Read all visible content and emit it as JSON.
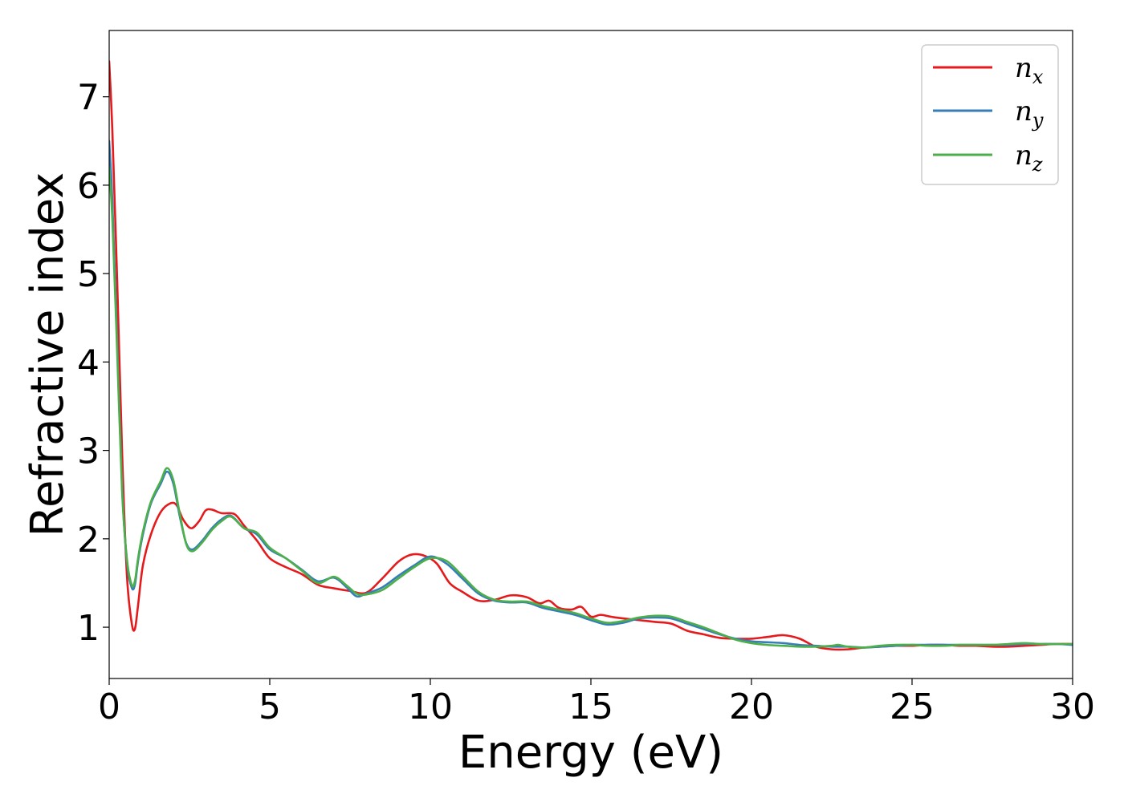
{
  "chart_data": {
    "type": "line",
    "title": "",
    "xlabel": "Energy (eV)",
    "ylabel": "Refractive index",
    "xlim": [
      0,
      30
    ],
    "ylim": [
      0.42,
      7.75
    ],
    "xticks": [
      0,
      5,
      10,
      15,
      20,
      25,
      30
    ],
    "yticks": [
      1,
      2,
      3,
      4,
      5,
      6,
      7
    ],
    "grid": false,
    "legend_position": "top-right",
    "series": [
      {
        "name": "n",
        "subscript": "x",
        "color": "#e41a1c",
        "x": [
          0,
          0.1,
          0.25,
          0.4,
          0.55,
          0.7,
          0.8,
          0.9,
          1.05,
          1.3,
          1.6,
          1.9,
          2.1,
          2.3,
          2.55,
          2.8,
          3.0,
          3.2,
          3.5,
          3.9,
          4.2,
          4.6,
          5.0,
          5.5,
          6.0,
          6.5,
          7.0,
          7.5,
          8.0,
          8.5,
          9.0,
          9.4,
          9.8,
          10.2,
          10.6,
          11.0,
          11.5,
          12.0,
          12.5,
          13.0,
          13.4,
          13.7,
          14.0,
          14.4,
          14.7,
          15.0,
          15.3,
          15.6,
          16.0,
          16.5,
          17.0,
          17.5,
          18.0,
          18.5,
          19.0,
          19.5,
          20.0,
          20.5,
          21.0,
          21.5,
          22.0,
          22.5,
          23.0,
          23.5,
          24.0,
          24.5,
          25.0,
          25.5,
          26.0,
          26.5,
          27.0,
          27.5,
          28.0,
          28.5,
          29.0,
          29.5,
          30.0
        ],
        "y": [
          7.4,
          6.6,
          4.9,
          3.0,
          1.6,
          1.05,
          0.98,
          1.25,
          1.7,
          2.05,
          2.3,
          2.4,
          2.38,
          2.22,
          2.12,
          2.2,
          2.32,
          2.33,
          2.29,
          2.28,
          2.15,
          1.98,
          1.78,
          1.68,
          1.6,
          1.48,
          1.44,
          1.41,
          1.39,
          1.55,
          1.74,
          1.82,
          1.81,
          1.72,
          1.5,
          1.4,
          1.3,
          1.31,
          1.36,
          1.34,
          1.27,
          1.3,
          1.22,
          1.2,
          1.23,
          1.12,
          1.14,
          1.12,
          1.1,
          1.08,
          1.06,
          1.04,
          0.96,
          0.92,
          0.88,
          0.87,
          0.87,
          0.89,
          0.91,
          0.87,
          0.78,
          0.75,
          0.75,
          0.77,
          0.78,
          0.79,
          0.79,
          0.8,
          0.8,
          0.79,
          0.79,
          0.78,
          0.78,
          0.79,
          0.8,
          0.81,
          0.81
        ]
      },
      {
        "name": "n",
        "subscript": "y",
        "color": "#377eb8",
        "x": [
          0,
          0.1,
          0.25,
          0.4,
          0.55,
          0.7,
          0.8,
          0.9,
          1.05,
          1.3,
          1.6,
          1.8,
          2.0,
          2.2,
          2.4,
          2.6,
          2.9,
          3.2,
          3.5,
          3.8,
          4.2,
          4.6,
          5.0,
          5.5,
          6.0,
          6.5,
          7.0,
          7.4,
          7.7,
          8.0,
          8.5,
          9.0,
          9.5,
          10.0,
          10.5,
          11.0,
          11.5,
          12.0,
          12.5,
          13.0,
          13.5,
          14.0,
          14.5,
          15.0,
          15.5,
          16.0,
          16.5,
          17.0,
          17.5,
          18.0,
          18.5,
          19.0,
          19.5,
          20.0,
          20.5,
          21.0,
          21.5,
          22.0,
          22.5,
          23.0,
          23.5,
          24.0,
          24.5,
          25.0,
          25.5,
          26.0,
          26.5,
          27.0,
          27.5,
          28.0,
          28.5,
          29.0,
          29.5,
          30.0
        ],
        "y": [
          6.5,
          5.8,
          4.2,
          2.6,
          1.75,
          1.45,
          1.48,
          1.75,
          2.05,
          2.4,
          2.62,
          2.76,
          2.62,
          2.25,
          1.95,
          1.88,
          1.98,
          2.12,
          2.22,
          2.26,
          2.12,
          2.05,
          1.88,
          1.78,
          1.65,
          1.52,
          1.56,
          1.45,
          1.35,
          1.38,
          1.45,
          1.58,
          1.7,
          1.8,
          1.72,
          1.55,
          1.38,
          1.3,
          1.28,
          1.28,
          1.22,
          1.18,
          1.14,
          1.08,
          1.03,
          1.05,
          1.1,
          1.11,
          1.1,
          1.04,
          0.98,
          0.92,
          0.87,
          0.84,
          0.83,
          0.82,
          0.8,
          0.79,
          0.78,
          0.78,
          0.77,
          0.78,
          0.79,
          0.8,
          0.8,
          0.8,
          0.8,
          0.8,
          0.8,
          0.8,
          0.81,
          0.81,
          0.81,
          0.8
        ]
      },
      {
        "name": "n",
        "subscript": "z",
        "color": "#4daf4a",
        "x": [
          0,
          0.1,
          0.25,
          0.4,
          0.55,
          0.7,
          0.8,
          0.9,
          1.05,
          1.3,
          1.6,
          1.8,
          2.0,
          2.2,
          2.4,
          2.6,
          2.9,
          3.2,
          3.5,
          3.8,
          4.2,
          4.6,
          5.0,
          5.5,
          6.0,
          6.5,
          7.0,
          7.4,
          7.7,
          8.0,
          8.5,
          9.0,
          9.5,
          10.0,
          10.5,
          11.0,
          11.5,
          12.0,
          12.5,
          13.0,
          13.5,
          14.0,
          14.5,
          15.0,
          15.5,
          16.0,
          16.5,
          17.0,
          17.5,
          18.0,
          18.5,
          19.0,
          19.5,
          20.0,
          20.5,
          21.0,
          21.5,
          22.0,
          22.5,
          22.7,
          23.0,
          23.5,
          24.0,
          24.5,
          25.0,
          25.5,
          26.0,
          26.5,
          27.0,
          27.5,
          28.0,
          28.5,
          29.0,
          29.5,
          30.0
        ],
        "y": [
          6.2,
          5.6,
          4.1,
          2.55,
          1.78,
          1.48,
          1.52,
          1.78,
          2.08,
          2.42,
          2.65,
          2.8,
          2.66,
          2.28,
          1.94,
          1.86,
          1.96,
          2.1,
          2.2,
          2.25,
          2.12,
          2.07,
          1.9,
          1.78,
          1.64,
          1.5,
          1.57,
          1.47,
          1.38,
          1.37,
          1.42,
          1.55,
          1.68,
          1.78,
          1.75,
          1.58,
          1.4,
          1.31,
          1.29,
          1.29,
          1.24,
          1.2,
          1.16,
          1.1,
          1.05,
          1.07,
          1.11,
          1.13,
          1.12,
          1.06,
          1.0,
          0.93,
          0.86,
          0.82,
          0.8,
          0.79,
          0.78,
          0.78,
          0.79,
          0.8,
          0.78,
          0.77,
          0.79,
          0.8,
          0.8,
          0.79,
          0.79,
          0.8,
          0.8,
          0.8,
          0.81,
          0.82,
          0.81,
          0.81,
          0.81
        ]
      }
    ]
  }
}
